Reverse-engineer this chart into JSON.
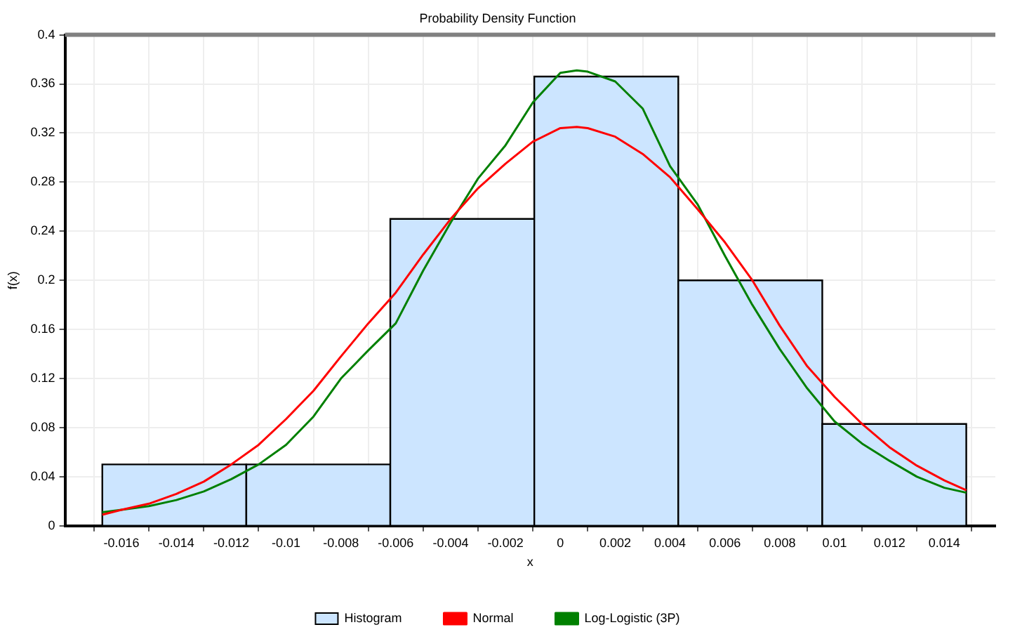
{
  "chart_data": {
    "type": "histogram",
    "title": "Probability Density Function",
    "xlabel": "x",
    "ylabel": "f(x)",
    "xlim": [
      -0.017,
      0.0148
    ],
    "xticks": [
      -0.016,
      -0.014,
      -0.012,
      -0.01,
      -0.008,
      -0.006,
      -0.004,
      -0.002,
      0,
      0.002,
      0.004,
      0.006,
      0.008,
      0.01,
      0.012,
      0.014
    ],
    "ylim": [
      0,
      0.4
    ],
    "yticks": [
      0,
      0.04,
      0.08,
      0.12,
      0.16,
      0.2,
      0.24,
      0.28,
      0.32,
      0.36,
      0.4
    ],
    "grid": true,
    "legend": "bottom",
    "series": [
      {
        "name": "Histogram",
        "type": "histogram",
        "color": "#cce5ff",
        "bins": [
          -0.0167,
          -0.01145,
          -0.0062,
          -0.00095,
          0.0043,
          0.00955,
          0.0148
        ],
        "values": [
          0.05,
          0.05,
          0.25,
          0.366,
          0.2,
          0.083
        ]
      },
      {
        "name": "Normal",
        "type": "line",
        "color": "#ff0000",
        "x": [
          -0.0167,
          -0.016,
          -0.015,
          -0.014,
          -0.013,
          -0.012,
          -0.011,
          -0.01,
          -0.009,
          -0.008,
          -0.007,
          -0.006,
          -0.005,
          -0.004,
          -0.003,
          -0.002,
          -0.001,
          0,
          0.0006,
          0.001,
          0.002,
          0.003,
          0.004,
          0.005,
          0.006,
          0.007,
          0.008,
          0.009,
          0.01,
          0.011,
          0.012,
          0.013,
          0.014,
          0.0148
        ],
        "values": [
          0.009,
          0.013,
          0.018,
          0.026,
          0.036,
          0.05,
          0.066,
          0.087,
          0.11,
          0.138,
          0.165,
          0.19,
          0.221,
          0.25,
          0.275,
          0.295,
          0.313,
          0.324,
          0.325,
          0.324,
          0.317,
          0.303,
          0.284,
          0.258,
          0.231,
          0.2,
          0.163,
          0.13,
          0.105,
          0.083,
          0.064,
          0.049,
          0.037,
          0.029
        ]
      },
      {
        "name": "Log-Logistic (3P)",
        "type": "line",
        "color": "#008000",
        "x": [
          -0.0167,
          -0.016,
          -0.015,
          -0.014,
          -0.013,
          -0.012,
          -0.011,
          -0.01,
          -0.009,
          -0.008,
          -0.007,
          -0.006,
          -0.005,
          -0.004,
          -0.003,
          -0.002,
          -0.001,
          0,
          0.0006,
          0.001,
          0.002,
          0.003,
          0.004,
          0.005,
          0.006,
          0.007,
          0.008,
          0.009,
          0.01,
          0.011,
          0.012,
          0.013,
          0.014,
          0.0148
        ],
        "values": [
          0.011,
          0.013,
          0.016,
          0.021,
          0.028,
          0.038,
          0.05,
          0.066,
          0.089,
          0.12,
          0.143,
          0.165,
          0.208,
          0.247,
          0.283,
          0.31,
          0.345,
          0.369,
          0.371,
          0.37,
          0.362,
          0.34,
          0.293,
          0.262,
          0.22,
          0.18,
          0.144,
          0.112,
          0.085,
          0.067,
          0.053,
          0.04,
          0.031,
          0.027
        ]
      }
    ]
  }
}
